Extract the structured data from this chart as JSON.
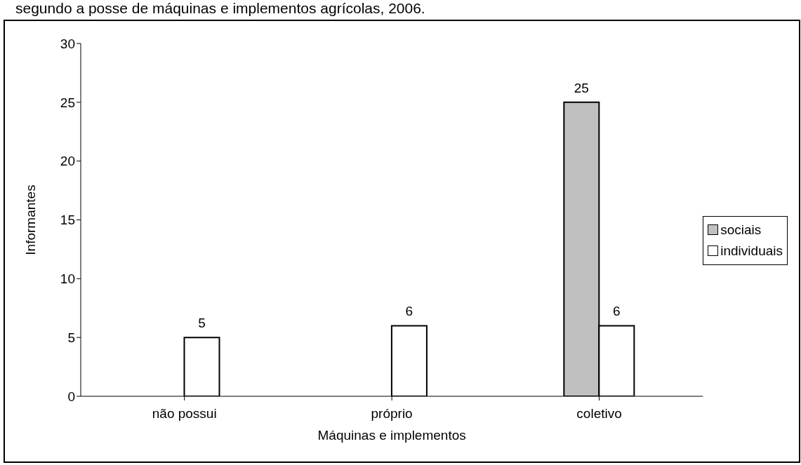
{
  "chart_data": {
    "type": "bar",
    "title": "segundo a posse de máquinas e implementos agrícolas, 2006.",
    "xlabel": "Máquinas e implementos",
    "ylabel": "Informantes",
    "categories": [
      "não possui",
      "próprio",
      "coletivo"
    ],
    "series": [
      {
        "name": "sociais",
        "color": "#c0c0c0",
        "values": [
          null,
          null,
          25
        ]
      },
      {
        "name": "individuais",
        "color": "#ffffff",
        "values": [
          5,
          6,
          6
        ]
      }
    ],
    "ylim": [
      0,
      30
    ],
    "yticks": [
      0,
      5,
      10,
      15,
      20,
      25,
      30
    ],
    "grid": false,
    "legend": "right",
    "data_labels": true
  }
}
